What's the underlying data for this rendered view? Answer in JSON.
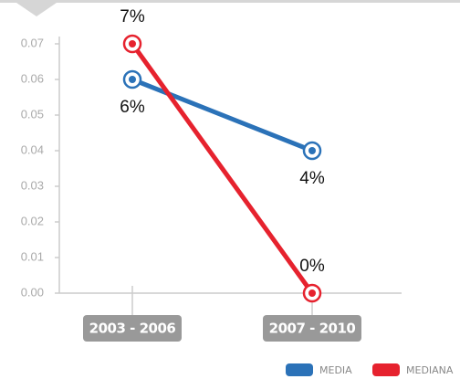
{
  "chart_data": {
    "type": "line",
    "categories": [
      "2003 - 2006",
      "2007 - 2010"
    ],
    "series": [
      {
        "name": "MEDIA",
        "color": "#2b72b8",
        "values": [
          0.06,
          0.04
        ],
        "value_labels": [
          "6%",
          "4%"
        ]
      },
      {
        "name": "MEDIANA",
        "color": "#e6222e",
        "values": [
          0.07,
          0.0
        ],
        "value_labels": [
          "7%",
          "0%"
        ]
      }
    ],
    "ylim": [
      0,
      0.07
    ],
    "yticks": [
      {
        "value": 0,
        "label": "0.00"
      },
      0.01,
      0.02,
      0.03,
      0.04,
      0.05,
      0.06,
      0.07
    ],
    "legend": "bottom-right"
  }
}
